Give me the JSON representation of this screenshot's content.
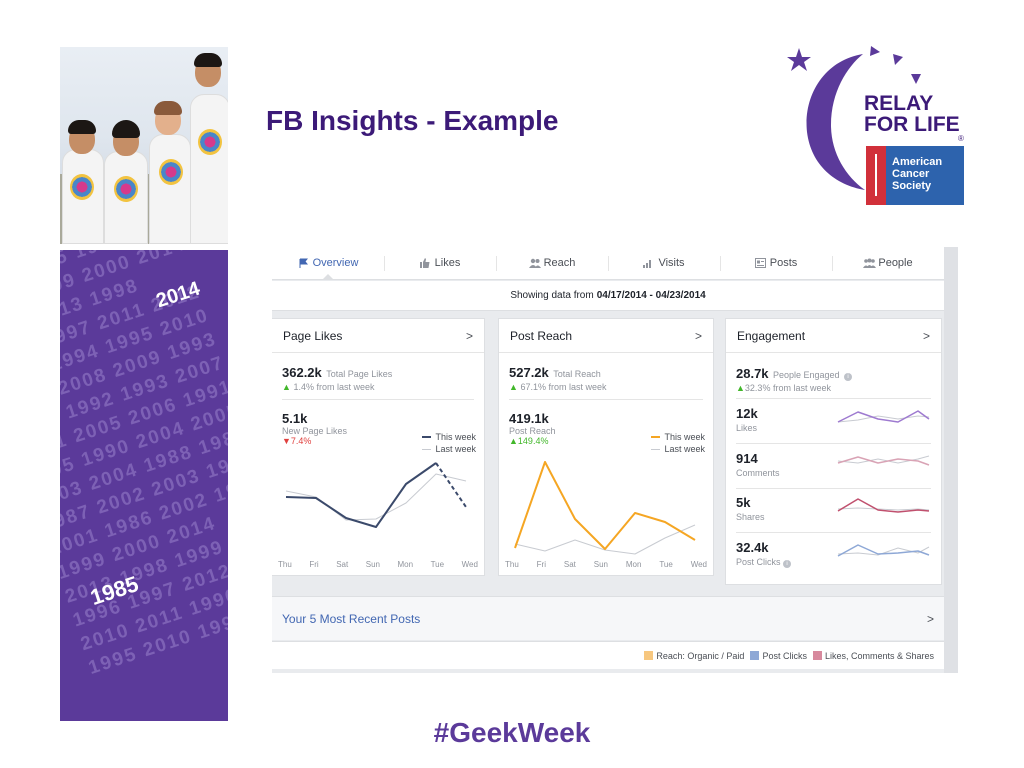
{
  "slide": {
    "title": "FB Insights - Example",
    "footer_tag": "#GeekWeek",
    "logo": {
      "line1": "RELAY",
      "line2": "FOR LIFE",
      "registered": "®",
      "acs_line1": "American",
      "acs_line2": "Cancer",
      "acs_line3": "Society"
    },
    "year_strip": {
      "highlight_1": "2014",
      "highlight_2": "1985",
      "pattern": "2001 1985 1986 2000 2014\n1985 1999 2000 2014\n2012 2013 1998\n1996 1997 2011 2012\n2010 1994 1995 2010\n1994 2008 2009 1993\n2008 1992 1993 2007\n1991 2005 2006 1991\n2005 1990 2004 2005\n2003 2004 1988 1989\n1987 2002 2003 1987\n2001 1986 2002 1986\n1999 2000 2014\n2013 1998 1999\n1996 1997 2012\n2010 2011 1996\n1995 2010 1995"
    },
    "colors": {
      "brand_purple": "#3c1a78",
      "strip_purple": "#5b3a9a",
      "fb_blue": "#4267b2"
    }
  },
  "insights": {
    "tabs": [
      {
        "label": "Overview",
        "icon": "flag-icon",
        "active": true
      },
      {
        "label": "Likes",
        "icon": "thumbs-up-icon",
        "active": false
      },
      {
        "label": "Reach",
        "icon": "people-icon",
        "active": false
      },
      {
        "label": "Visits",
        "icon": "bar-chart-icon",
        "active": false
      },
      {
        "label": "Posts",
        "icon": "posts-icon",
        "active": false
      },
      {
        "label": "People",
        "icon": "group-icon",
        "active": false
      }
    ],
    "range": {
      "prefix": "Showing data from",
      "dates": "04/17/2014 - 04/23/2014"
    },
    "days": [
      "Thu",
      "Fri",
      "Sat",
      "Sun",
      "Mon",
      "Tue",
      "Wed"
    ],
    "page_likes": {
      "title": "Page Likes",
      "total_value": "362.2k",
      "total_label": "Total Page Likes",
      "total_change": "1.4%",
      "change_suffix": "from last week",
      "new_value": "5.1k",
      "new_label": "New Page Likes",
      "new_change": "7.4%",
      "legend_this": "This week",
      "legend_last": "Last week"
    },
    "post_reach": {
      "title": "Post Reach",
      "total_value": "527.2k",
      "total_label": "Total Reach",
      "total_change": "67.1%",
      "change_suffix": "from last week",
      "reach_value": "419.1k",
      "reach_label": "Post Reach",
      "reach_change": "149.4%",
      "legend_this": "This week",
      "legend_last": "Last week"
    },
    "engagement": {
      "title": "Engagement",
      "total_value": "28.7k",
      "total_label": "People Engaged",
      "total_change": "32.3%",
      "change_suffix": "from last week",
      "rows": [
        {
          "value": "12k",
          "label": "Likes"
        },
        {
          "value": "914",
          "label": "Comments"
        },
        {
          "value": "5k",
          "label": "Shares"
        },
        {
          "value": "32.4k",
          "label": "Post Clicks"
        }
      ]
    },
    "recent_posts": {
      "title": "Your 5 Most Recent Posts"
    },
    "recent_legend": {
      "reach": "Reach: Organic / Paid",
      "clicks": "Post Clicks",
      "likes": "Likes, Comments & Shares"
    },
    "colors": {
      "this_week_likes": "#3b4a6b",
      "this_week_reach": "#f5a623",
      "last_week": "#c8cbd1",
      "up": "#42b72a",
      "down": "#e0403e",
      "spark_likes": "#9e7ad0",
      "spark_comments": "#d9a3b5",
      "spark_shares": "#c0506e",
      "spark_clicks": "#8ea8d6"
    }
  }
}
